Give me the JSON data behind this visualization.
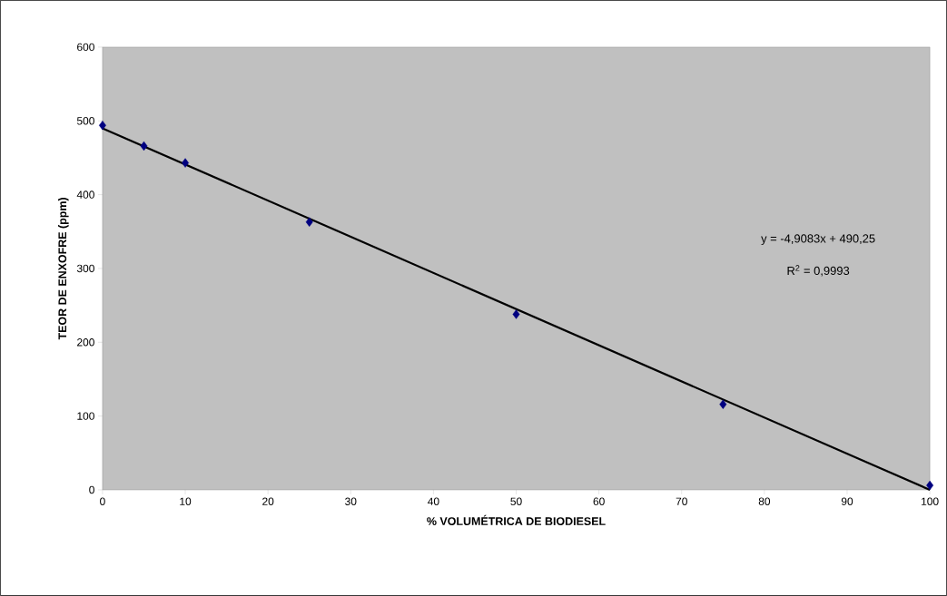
{
  "chart_data": {
    "type": "scatter",
    "xlabel": "% VOLUMÉTRICA DE BIODIESEL",
    "ylabel": "TEOR DE ENXOFRE (ppm)",
    "x": [
      0,
      5,
      10,
      25,
      50,
      75,
      100
    ],
    "series": [
      {
        "color": "#000080",
        "marker": "diamond",
        "values": [
          494,
          466,
          443,
          363,
          238,
          116,
          6
        ]
      },
      {
        "type": "line",
        "color": "#000000",
        "marker": "none",
        "line_style": "solid",
        "x": [
          0,
          100
        ],
        "values": [
          490,
          0
        ]
      }
    ],
    "xlim": [
      0,
      100
    ],
    "ylim": [
      0,
      600
    ],
    "xticks": [
      0,
      10,
      20,
      30,
      40,
      50,
      60,
      70,
      80,
      90,
      100
    ],
    "yticks": [
      0,
      100,
      200,
      300,
      400,
      500,
      600
    ],
    "annotations": [
      "y = -4,9083x + 490,25",
      "R$^{2}$ = 0,9993"
    ],
    "grid": false
  }
}
